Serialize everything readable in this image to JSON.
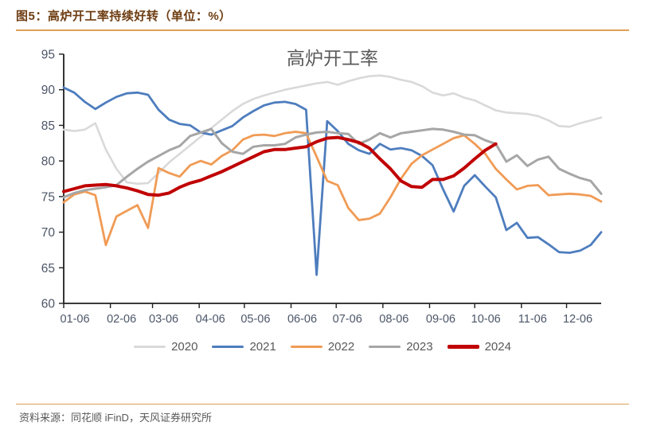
{
  "header": {
    "title": "图5：高炉开工率持续好转（单位：%）"
  },
  "footer": {
    "source": "资料来源：同花顺 iFinD，天风证券研究所"
  },
  "theme": {
    "header_title_color": "#6E3D12",
    "rule_color": "#DFA156",
    "chart_title_color": "#595959",
    "axis_line_color": "#1F1F1F",
    "axis_label_color": "#4C5668",
    "legend_label_color": "#595959",
    "background": "#FFFFFF"
  },
  "chart_data": {
    "type": "line",
    "title": "高炉开工率",
    "unit": "%",
    "ylim": [
      60,
      95
    ],
    "y_ticks": [
      60,
      65,
      70,
      75,
      80,
      85,
      90,
      95
    ],
    "x_tick_labels": [
      "01-06",
      "02-06",
      "03-06",
      "04-06",
      "05-06",
      "06-06",
      "07-06",
      "08-06",
      "09-06",
      "10-06",
      "11-06",
      "12-06"
    ],
    "grid": false,
    "legend_position": "bottom",
    "x": [
      "01-06",
      "01-13",
      "01-20",
      "01-27",
      "02-03",
      "02-10",
      "02-17",
      "02-24",
      "03-03",
      "03-10",
      "03-17",
      "03-24",
      "03-31",
      "04-07",
      "04-14",
      "04-21",
      "04-28",
      "05-05",
      "05-12",
      "05-19",
      "05-26",
      "06-02",
      "06-09",
      "06-16",
      "06-23",
      "06-30",
      "07-07",
      "07-14",
      "07-21",
      "07-28",
      "08-04",
      "08-11",
      "08-18",
      "08-25",
      "09-01",
      "09-08",
      "09-15",
      "09-22",
      "09-29",
      "10-06",
      "10-13",
      "10-20",
      "10-27",
      "11-03",
      "11-10",
      "11-17",
      "11-24",
      "12-01",
      "12-08",
      "12-15",
      "12-22",
      "12-29"
    ],
    "series": [
      {
        "name": "2020",
        "color": "#D9D9D9",
        "values": [
          84.4,
          84.2,
          84.4,
          85.3,
          81.6,
          78.9,
          77.0,
          76.8,
          76.9,
          78.3,
          79.8,
          81.0,
          82.2,
          83.4,
          84.6,
          85.8,
          87.0,
          88.0,
          88.7,
          89.2,
          89.6,
          90.0,
          90.3,
          90.6,
          90.9,
          91.1,
          90.7,
          91.2,
          91.6,
          91.9,
          92.0,
          91.8,
          91.4,
          91.1,
          90.5,
          89.6,
          89.2,
          89.5,
          88.9,
          88.5,
          87.8,
          87.1,
          86.8,
          86.7,
          86.6,
          86.3,
          85.7,
          84.9,
          84.8,
          85.3,
          85.7,
          86.1
        ]
      },
      {
        "name": "2021",
        "color": "#4E7DBE",
        "values": [
          90.3,
          89.6,
          88.3,
          87.3,
          88.2,
          89.0,
          89.5,
          89.6,
          89.3,
          87.2,
          85.8,
          85.2,
          85.0,
          84.0,
          83.7,
          84.3,
          84.9,
          86.1,
          87.0,
          87.8,
          88.2,
          88.3,
          88.0,
          87.2,
          64.0,
          85.6,
          84.2,
          82.4,
          81.5,
          81.0,
          82.4,
          81.6,
          81.8,
          81.5,
          80.7,
          79.4,
          76.0,
          72.9,
          76.5,
          78.0,
          76.4,
          74.9,
          70.3,
          71.3,
          69.2,
          69.3,
          68.3,
          67.2,
          67.1,
          67.4,
          68.2,
          70.0
        ]
      },
      {
        "name": "2022",
        "color": "#F09B55",
        "values": [
          74.2,
          75.3,
          75.7,
          75.2,
          68.2,
          72.2,
          73.0,
          73.8,
          70.6,
          79.0,
          78.3,
          77.8,
          79.4,
          80.0,
          79.5,
          80.7,
          81.5,
          83.0,
          83.6,
          83.7,
          83.5,
          83.9,
          84.1,
          83.9,
          80.6,
          77.2,
          76.6,
          73.4,
          71.7,
          71.9,
          72.6,
          74.9,
          77.5,
          79.6,
          80.8,
          81.6,
          82.4,
          83.2,
          83.6,
          82.4,
          81.0,
          78.9,
          77.4,
          76.0,
          76.5,
          76.6,
          75.2,
          75.3,
          75.4,
          75.3,
          75.1,
          74.3
        ]
      },
      {
        "name": "2023",
        "color": "#A6A6A6",
        "values": [
          74.9,
          75.5,
          75.9,
          76.1,
          76.3,
          76.6,
          77.8,
          78.9,
          79.9,
          80.7,
          81.5,
          82.1,
          83.5,
          84.0,
          84.5,
          82.5,
          81.3,
          81.0,
          82.0,
          82.2,
          82.2,
          82.4,
          83.3,
          83.7,
          84.0,
          84.1,
          83.9,
          83.8,
          82.4,
          83.0,
          83.9,
          83.3,
          83.9,
          84.1,
          84.3,
          84.5,
          84.4,
          84.1,
          83.7,
          83.6,
          82.9,
          82.4,
          79.9,
          80.8,
          79.3,
          80.2,
          80.6,
          78.9,
          78.2,
          77.6,
          77.2,
          75.4
        ]
      },
      {
        "name": "2024",
        "color": "#C00000",
        "values": [
          75.7,
          76.1,
          76.5,
          76.6,
          76.7,
          76.5,
          76.2,
          75.8,
          75.3,
          75.2,
          75.5,
          76.3,
          76.9,
          77.3,
          77.9,
          78.5,
          79.2,
          79.9,
          80.6,
          81.3,
          81.6,
          81.6,
          81.8,
          82.0,
          82.7,
          83.2,
          83.3,
          83.0,
          82.6,
          81.8,
          80.3,
          78.9,
          77.2,
          76.4,
          76.3,
          77.4,
          77.4,
          77.9,
          79.0,
          80.3,
          81.5,
          82.4
        ]
      }
    ]
  }
}
